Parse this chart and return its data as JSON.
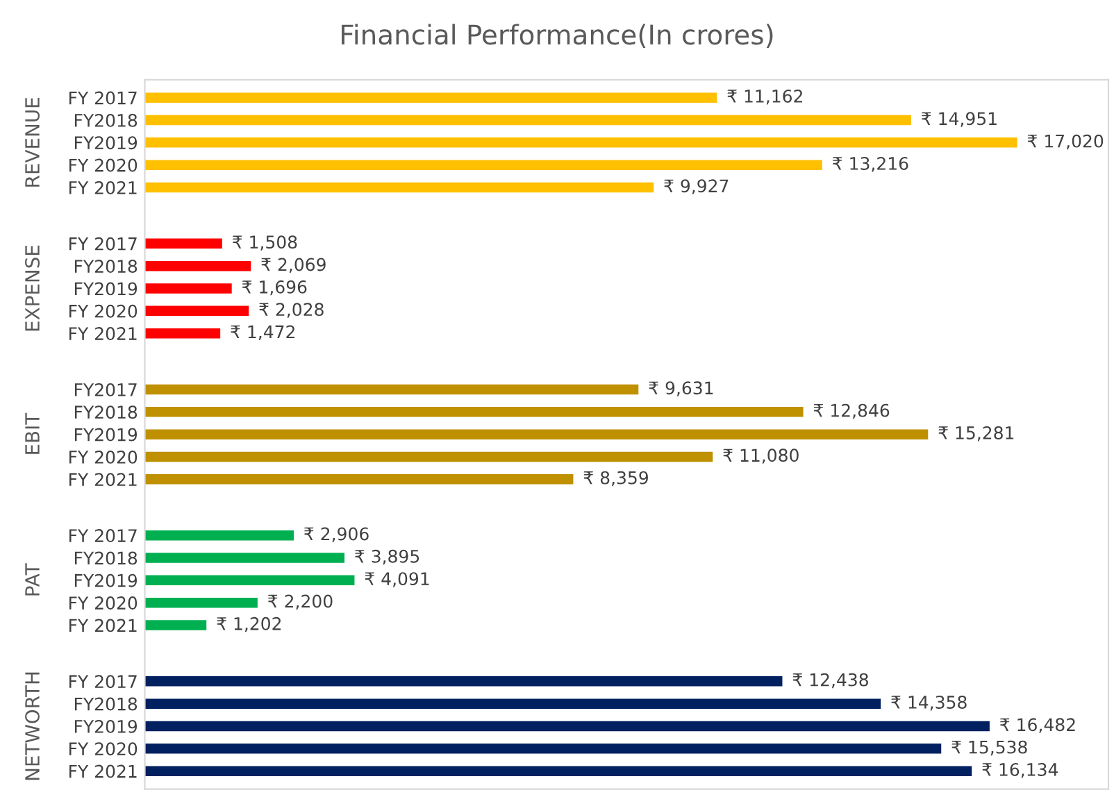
{
  "chart_data": {
    "type": "bar",
    "orientation": "horizontal",
    "title": "Financial Performance(In crores)",
    "categories": [
      "FY 2017",
      "FY2018",
      "FY2019",
      "FY 2020",
      "FY 2021",
      "FY 2017",
      "FY2018",
      "FY2019",
      "FY 2020",
      "FY 2021",
      "FY2017",
      "FY2018",
      "FY2019",
      "FY 2020",
      "FY 2021",
      "FY 2017",
      "FY2018",
      "FY2019",
      "FY 2020",
      "FY 2021",
      "FY 2017",
      "FY2018",
      "FY2019",
      "FY 2020",
      "FY 2021"
    ],
    "series": [
      {
        "color": "#ffc000",
        "values": [
          11162,
          14951,
          17020,
          13216,
          9927,
          null,
          null,
          null,
          null,
          null,
          null,
          null,
          null,
          null,
          null,
          null,
          null,
          null,
          null,
          null,
          null,
          null,
          null,
          null,
          null
        ],
        "value_labels": [
          "₹ 11,162",
          "₹ 14,951",
          "₹ 17,020",
          "₹ 13,216",
          "₹ 9,927",
          null,
          null,
          null,
          null,
          null,
          null,
          null,
          null,
          null,
          null,
          null,
          null,
          null,
          null,
          null,
          null,
          null,
          null,
          null,
          null
        ]
      },
      {
        "color": "#ff0000",
        "values": [
          null,
          null,
          null,
          null,
          null,
          1508,
          2069,
          1696,
          2028,
          1472,
          null,
          null,
          null,
          null,
          null,
          null,
          null,
          null,
          null,
          null,
          null,
          null,
          null,
          null,
          null
        ],
        "value_labels": [
          null,
          null,
          null,
          null,
          null,
          "₹ 1,508",
          "₹ 2,069",
          "₹ 1,696",
          "₹ 2,028",
          "₹ 1,472",
          null,
          null,
          null,
          null,
          null,
          null,
          null,
          null,
          null,
          null,
          null,
          null,
          null,
          null,
          null
        ]
      },
      {
        "color": "#bf9000",
        "values": [
          null,
          null,
          null,
          null,
          null,
          null,
          null,
          null,
          null,
          null,
          9631,
          12846,
          15281,
          11080,
          8359,
          null,
          null,
          null,
          null,
          null,
          null,
          null,
          null,
          null,
          null
        ],
        "value_labels": [
          null,
          null,
          null,
          null,
          null,
          null,
          null,
          null,
          null,
          null,
          "₹ 9,631",
          "₹ 12,846",
          "₹ 15,281",
          "₹ 11,080",
          "₹ 8,359",
          null,
          null,
          null,
          null,
          null,
          null,
          null,
          null,
          null,
          null
        ]
      },
      {
        "color": "#00b050",
        "values": [
          null,
          null,
          null,
          null,
          null,
          null,
          null,
          null,
          null,
          null,
          null,
          null,
          null,
          null,
          null,
          2906,
          3895,
          4091,
          2200,
          1202,
          null,
          null,
          null,
          null,
          null
        ],
        "value_labels": [
          null,
          null,
          null,
          null,
          null,
          null,
          null,
          null,
          null,
          null,
          null,
          null,
          null,
          null,
          null,
          "₹ 2,906",
          "₹ 3,895",
          "₹ 4,091",
          "₹ 2,200",
          "₹ 1,202",
          null,
          null,
          null,
          null,
          null
        ]
      },
      {
        "color": "#002060",
        "values": [
          null,
          null,
          null,
          null,
          null,
          null,
          null,
          null,
          null,
          null,
          null,
          null,
          null,
          null,
          null,
          null,
          null,
          null,
          null,
          null,
          12438,
          14358,
          16482,
          15538,
          16134
        ],
        "value_labels": [
          null,
          null,
          null,
          null,
          null,
          null,
          null,
          null,
          null,
          null,
          null,
          null,
          null,
          null,
          null,
          null,
          null,
          null,
          null,
          null,
          "₹ 12,438",
          "₹ 14,358",
          "₹ 16,482",
          "₹ 15,538",
          "₹ 16,134"
        ]
      }
    ],
    "annotations": [
      "REVENUE",
      "EXPENSE",
      "EBIT",
      "PAT",
      "NETWORTH"
    ],
    "xlim": [
      0,
      18800
    ],
    "tick_labels": "y",
    "legend": false,
    "grid": false
  }
}
